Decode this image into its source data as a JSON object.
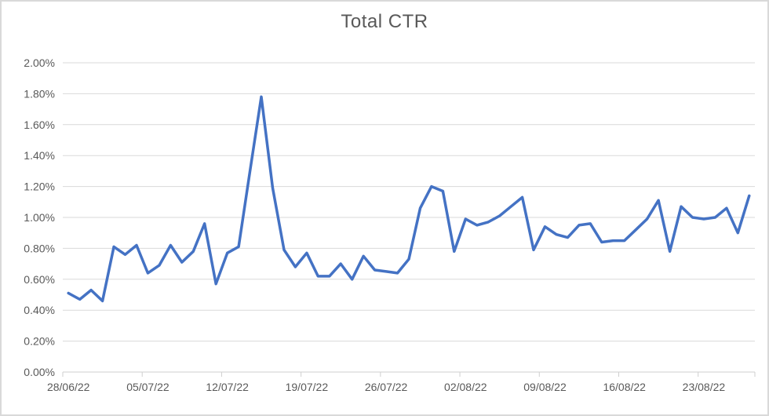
{
  "window": {
    "title": "Total CTR chart"
  },
  "chart_data": {
    "type": "line",
    "title": "Total CTR",
    "series": [
      {
        "name": "Total CTR",
        "unit": "percent",
        "values": [
          0.51,
          0.47,
          0.53,
          0.46,
          0.81,
          0.76,
          0.82,
          0.64,
          0.69,
          0.82,
          0.71,
          0.78,
          0.96,
          0.57,
          0.77,
          0.81,
          1.3,
          1.78,
          1.19,
          0.79,
          0.68,
          0.77,
          0.62,
          0.62,
          0.7,
          0.6,
          0.75,
          0.66,
          0.65,
          0.64,
          0.73,
          1.06,
          1.2,
          1.17,
          0.78,
          0.99,
          0.95,
          0.97,
          1.01,
          1.07,
          1.13,
          0.79,
          0.94,
          0.89,
          0.87,
          0.95,
          0.96,
          0.84,
          0.85,
          0.85,
          0.92,
          0.99,
          1.11,
          0.78,
          1.07,
          1.0,
          0.99,
          1.0,
          1.06,
          0.9,
          1.14
        ]
      }
    ],
    "x": [
      "28/06/22",
      "29/06/22",
      "30/06/22",
      "01/07/22",
      "02/07/22",
      "03/07/22",
      "04/07/22",
      "05/07/22",
      "06/07/22",
      "07/07/22",
      "08/07/22",
      "09/07/22",
      "10/07/22",
      "11/07/22",
      "12/07/22",
      "13/07/22",
      "14/07/22",
      "15/07/22",
      "16/07/22",
      "17/07/22",
      "18/07/22",
      "19/07/22",
      "20/07/22",
      "21/07/22",
      "22/07/22",
      "23/07/22",
      "24/07/22",
      "25/07/22",
      "26/07/22",
      "27/07/22",
      "28/07/22",
      "29/07/22",
      "30/07/22",
      "31/07/22",
      "01/08/22",
      "02/08/22",
      "03/08/22",
      "04/08/22",
      "05/08/22",
      "06/08/22",
      "07/08/22",
      "08/08/22",
      "09/08/22",
      "10/08/22",
      "11/08/22",
      "12/08/22",
      "13/08/22",
      "14/08/22",
      "15/08/22",
      "16/08/22",
      "17/08/22",
      "18/08/22",
      "19/08/22",
      "20/08/22",
      "21/08/22",
      "22/08/22",
      "23/08/22",
      "24/08/22",
      "25/08/22",
      "26/08/22",
      "27/08/22"
    ],
    "x_tick_labels": [
      "28/06/22",
      "05/07/22",
      "12/07/22",
      "19/07/22",
      "26/07/22",
      "02/08/22",
      "09/08/22",
      "16/08/22",
      "23/08/22"
    ],
    "x_tick_interval_days": 7,
    "y_axis": {
      "min": 0.0,
      "max": 2.0,
      "step": 0.2,
      "tick_labels": [
        "0.00%",
        "0.20%",
        "0.40%",
        "0.60%",
        "0.80%",
        "1.00%",
        "1.20%",
        "1.40%",
        "1.60%",
        "1.80%",
        "2.00%"
      ]
    },
    "grid": true,
    "legend": false,
    "colors": {
      "series_line": "#4472C4",
      "gridline": "#D9D9D9",
      "axis_line": "#CFCFCF",
      "text": "#595959",
      "chart_border": "#D9D9D9",
      "background": "#FFFFFF"
    }
  }
}
